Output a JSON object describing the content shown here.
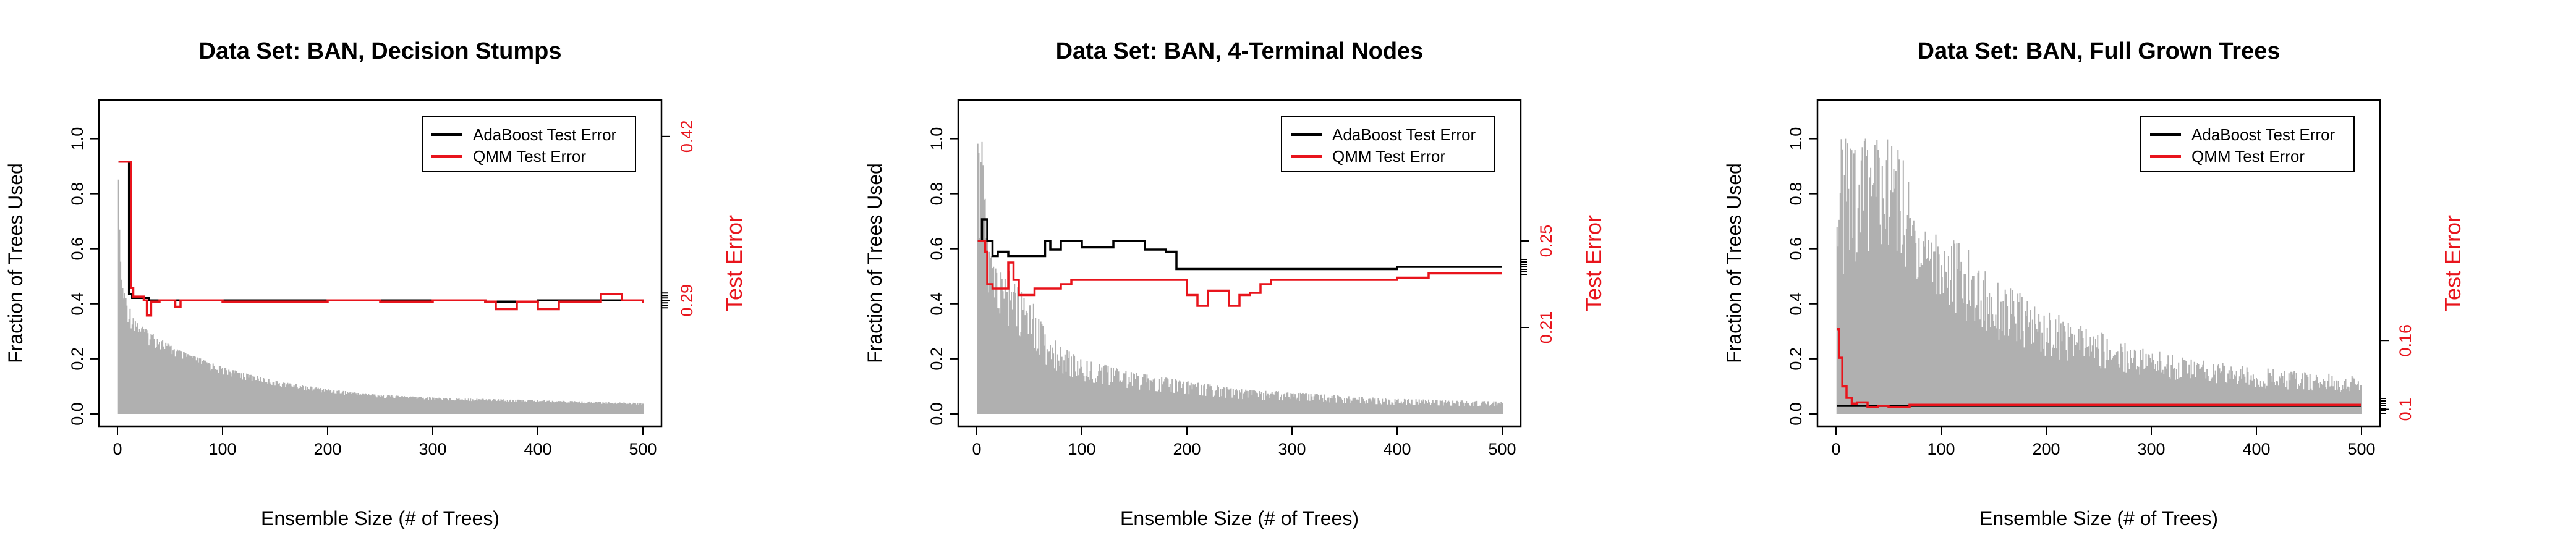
{
  "colors": {
    "adaboost": "#000000",
    "qmm": "#e8141c",
    "fraction_fill": "#b0b0b0",
    "right_axis": "#e8141c"
  },
  "chart_data": [
    {
      "type": "line",
      "title": "Data Set: BAN, Decision Stumps",
      "xlabel": "Ensemble Size (# of Trees)",
      "ylabel": "Fraction of Trees Used",
      "ylabel_right": "Test Error",
      "xlim": [
        0,
        500
      ],
      "ylim": [
        0,
        1.1
      ],
      "ylim_right": [
        0.2,
        0.44
      ],
      "x_ticks": [
        0,
        100,
        200,
        300,
        400,
        500
      ],
      "y_ticks": [
        0,
        0.2,
        0.4,
        0.6,
        0.8,
        1
      ],
      "y_tick_labels": [
        "0.0",
        "0.2",
        "0.4",
        "0.6",
        "0.8",
        "1.0"
      ],
      "y_right_ticks": [
        0.29,
        0.42
      ],
      "y_right_tick_labels": [
        "0.29",
        "0.42"
      ],
      "legend": {
        "placement": "top-right",
        "entries": [
          "AdaBoost Test Error",
          "QMM Test Error"
        ]
      },
      "fraction_area": {
        "x": [
          1,
          2,
          4,
          6,
          8,
          10,
          15,
          20,
          30,
          40,
          50,
          60,
          80,
          100,
          150,
          200,
          250,
          300,
          350,
          400,
          450,
          500
        ],
        "y": [
          1.0,
          0.67,
          0.5,
          0.45,
          0.43,
          0.4,
          0.36,
          0.33,
          0.3,
          0.28,
          0.25,
          0.23,
          0.2,
          0.17,
          0.12,
          0.09,
          0.07,
          0.06,
          0.055,
          0.05,
          0.045,
          0.04
        ]
      },
      "series": [
        {
          "name": "AdaBoost Test Error",
          "x": [
            1,
            10,
            11,
            14,
            30,
            50,
            100,
            150,
            200,
            250,
            300,
            350,
            400,
            450,
            500
          ],
          "y": [
            0.4,
            0.4,
            0.295,
            0.292,
            0.29,
            0.29,
            0.29,
            0.29,
            0.29,
            0.29,
            0.29,
            0.289,
            0.29,
            0.29,
            0.29
          ]
        },
        {
          "name": "QMM Test Error",
          "x": [
            1,
            12,
            13,
            15,
            25,
            28,
            32,
            40,
            55,
            60,
            100,
            150,
            200,
            250,
            300,
            350,
            360,
            380,
            400,
            420,
            450,
            460,
            480,
            500
          ],
          "y": [
            0.4,
            0.4,
            0.3,
            0.293,
            0.29,
            0.278,
            0.289,
            0.29,
            0.285,
            0.29,
            0.289,
            0.289,
            0.29,
            0.289,
            0.29,
            0.289,
            0.283,
            0.289,
            0.283,
            0.289,
            0.289,
            0.295,
            0.29,
            0.288
          ]
        }
      ]
    },
    {
      "type": "line",
      "title": "Data Set: BAN, 4-Terminal Nodes",
      "xlabel": "Ensemble Size (# of Trees)",
      "ylabel": "Fraction of Trees Used",
      "ylabel_right": "Test Error",
      "xlim": [
        0,
        500
      ],
      "ylim": [
        0,
        1.1
      ],
      "ylim_right": [
        0.17,
        0.31
      ],
      "x_ticks": [
        0,
        100,
        200,
        300,
        400,
        500
      ],
      "y_ticks": [
        0,
        0.2,
        0.4,
        0.6,
        0.8,
        1
      ],
      "y_tick_labels": [
        "0.0",
        "0.2",
        "0.4",
        "0.6",
        "0.8",
        "1.0"
      ],
      "y_right_ticks": [
        0.21,
        0.25
      ],
      "y_right_tick_labels": [
        "0.21",
        "0.25"
      ],
      "legend": {
        "placement": "top-right",
        "entries": [
          "AdaBoost Test Error",
          "QMM Test Error"
        ]
      },
      "fraction_area": {
        "x": [
          1,
          3,
          5,
          8,
          12,
          18,
          25,
          35,
          45,
          55,
          65,
          80,
          100,
          150,
          200,
          250,
          300,
          350,
          400,
          450,
          500
        ],
        "y": [
          1.0,
          0.9,
          1.0,
          0.8,
          0.6,
          0.55,
          0.5,
          0.55,
          0.42,
          0.4,
          0.3,
          0.25,
          0.2,
          0.15,
          0.12,
          0.09,
          0.08,
          0.065,
          0.055,
          0.05,
          0.045
        ]
      },
      "series": [
        {
          "name": "AdaBoost Test Error",
          "x": [
            1,
            5,
            10,
            15,
            20,
            30,
            60,
            65,
            70,
            80,
            100,
            130,
            160,
            180,
            190,
            200,
            250,
            300,
            350,
            400,
            450,
            500
          ],
          "y": [
            0.25,
            0.26,
            0.25,
            0.243,
            0.245,
            0.243,
            0.243,
            0.25,
            0.246,
            0.25,
            0.247,
            0.25,
            0.246,
            0.245,
            0.237,
            0.237,
            0.237,
            0.237,
            0.237,
            0.238,
            0.238,
            0.238
          ]
        },
        {
          "name": "QMM Test Error",
          "x": [
            1,
            5,
            8,
            10,
            15,
            30,
            35,
            40,
            55,
            80,
            90,
            120,
            180,
            200,
            210,
            220,
            240,
            250,
            260,
            270,
            280,
            300,
            320,
            350,
            400,
            430,
            470,
            500
          ],
          "y": [
            0.25,
            0.25,
            0.245,
            0.23,
            0.228,
            0.24,
            0.232,
            0.225,
            0.228,
            0.23,
            0.232,
            0.232,
            0.232,
            0.225,
            0.22,
            0.227,
            0.22,
            0.225,
            0.226,
            0.23,
            0.232,
            0.232,
            0.232,
            0.232,
            0.233,
            0.235,
            0.235,
            0.235
          ]
        }
      ]
    },
    {
      "type": "line",
      "title": "Data Set: BAN, Full Grown Trees",
      "xlabel": "Ensemble Size (# of Trees)",
      "ylabel": "Fraction of Trees Used",
      "ylabel_right": "Test Error",
      "xlim": [
        0,
        500
      ],
      "ylim": [
        0,
        1.1
      ],
      "ylim_right": [
        0.096,
        0.36
      ],
      "x_ticks": [
        0,
        100,
        200,
        300,
        400,
        500
      ],
      "y_ticks": [
        0,
        0.2,
        0.4,
        0.6,
        0.8,
        1
      ],
      "y_tick_labels": [
        "0.0",
        "0.2",
        "0.4",
        "0.6",
        "0.8",
        "1.0"
      ],
      "y_right_ticks": [
        0.1,
        0.16
      ],
      "y_right_tick_labels": [
        "0.1",
        "0.16"
      ],
      "legend": {
        "placement": "top-right",
        "entries": [
          "AdaBoost Test Error",
          "QMM Test Error"
        ]
      },
      "fraction_area": {
        "x": [
          1,
          20,
          40,
          60,
          70,
          80,
          100,
          150,
          200,
          250,
          300,
          350,
          400,
          450,
          500
        ],
        "y": [
          1.0,
          1.0,
          1.0,
          1.0,
          0.85,
          0.8,
          0.7,
          0.5,
          0.38,
          0.3,
          0.24,
          0.2,
          0.17,
          0.15,
          0.14
        ]
      },
      "series": [
        {
          "name": "AdaBoost Test Error",
          "x": [
            1,
            5,
            10,
            20,
            30,
            50,
            100,
            200,
            300,
            400,
            500
          ],
          "y": [
            0.103,
            0.103,
            0.103,
            0.103,
            0.103,
            0.103,
            0.103,
            0.103,
            0.103,
            0.103,
            0.103
          ]
        },
        {
          "name": "QMM Test Error",
          "x": [
            1,
            3,
            6,
            10,
            15,
            20,
            30,
            40,
            50,
            70,
            100,
            200,
            300,
            400,
            500
          ],
          "y": [
            0.17,
            0.145,
            0.12,
            0.11,
            0.105,
            0.106,
            0.102,
            0.103,
            0.102,
            0.104,
            0.104,
            0.104,
            0.104,
            0.104,
            0.104
          ]
        }
      ]
    }
  ]
}
